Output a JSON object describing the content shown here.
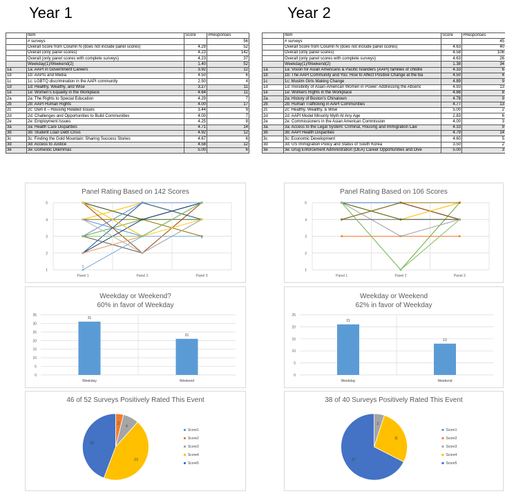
{
  "columns": [
    {
      "year_title": "Year 1",
      "header": {
        "item": "Item",
        "score": "Score",
        "responses": "#Responses"
      },
      "rows": [
        {
          "code": "",
          "item": "# surveys",
          "score": "",
          "responses": "56",
          "shade": false
        },
        {
          "code": "",
          "item": "Overall Score from Column N (does not include panel scores)",
          "score": "4.29",
          "responses": "52",
          "shade": false
        },
        {
          "code": "",
          "item": "Overall (only panel scores)",
          "score": "4.23",
          "responses": "142",
          "shade": false
        },
        {
          "code": "",
          "item": "Overall (only panel scores with complete surveys)",
          "score": "4.23",
          "responses": "37",
          "shade": false
        },
        {
          "code": "",
          "item": "Weekday(1)/Weekend(2)",
          "score": "1.40",
          "responses": "52",
          "shade": true
        },
        {
          "code": "1a",
          "item": "1a: AAPI in Government Careers",
          "score": "3.92",
          "responses": "12",
          "shade": true
        },
        {
          "code": "1b",
          "item": "1b: AAPIs and Media",
          "score": "4.50",
          "responses": "6",
          "shade": false
        },
        {
          "code": "1c",
          "item": "1c: LGBTQ discrimination in the AAPI community",
          "score": "2.50",
          "responses": "4",
          "shade": false
        },
        {
          "code": "1d",
          "item": "1d: Healthy, Wealthy, and Wise",
          "score": "3.27",
          "responses": "11",
          "shade": true
        },
        {
          "code": "1e",
          "item": "1e: Women's Equality in the Workplace",
          "score": "4.64",
          "responses": "11",
          "shade": true
        },
        {
          "code": "2a",
          "item": "2a: The Rights to Special Education",
          "score": "4.29",
          "responses": "7",
          "shade": false
        },
        {
          "code": "2b",
          "item": "2b: AAPI Human Rights",
          "score": "4.00",
          "responses": "17",
          "shade": true
        },
        {
          "code": "2c",
          "item": "2c: Own it – Housing Related Issues",
          "score": "3.44",
          "responses": "9",
          "shade": false
        },
        {
          "code": "2d",
          "item": "2d: Challenges and Opportunities to Build Communities",
          "score": "4.00",
          "responses": "7",
          "shade": false
        },
        {
          "code": "2e",
          "item": "2e: Employment Issues",
          "score": "4.25",
          "responses": "8",
          "shade": false
        },
        {
          "code": "3a",
          "item": "3a: Health Care Disparities",
          "score": "4.71",
          "responses": "14",
          "shade": true
        },
        {
          "code": "3b",
          "item": "3b: Student Loan Debt Crisis",
          "score": "4.92",
          "responses": "12",
          "shade": true
        },
        {
          "code": "3c",
          "item": "3c: Finding the Gold Mountain: Sharing Success Stories",
          "score": "4.67",
          "responses": "6",
          "shade": false
        },
        {
          "code": "3d",
          "item": "3d: Access to Justice",
          "score": "4.58",
          "responses": "12",
          "shade": true
        },
        {
          "code": "3e",
          "item": "3e: Domestic Dilemmas",
          "score": "5.00",
          "responses": "6",
          "shade": true
        }
      ]
    },
    {
      "year_title": "Year 2",
      "header": {
        "item": "Item",
        "score": "Score",
        "responses": "#Responses"
      },
      "rows": [
        {
          "code": "",
          "item": "# surveys",
          "score": "",
          "responses": "45",
          "shade": false
        },
        {
          "code": "",
          "item": "Overall Score from Column N (does not include panel scores)",
          "score": "4.63",
          "responses": "40",
          "shade": false
        },
        {
          "code": "",
          "item": "Overall (only panel scores)",
          "score": "4.58",
          "responses": "106",
          "shade": false
        },
        {
          "code": "",
          "item": "Overall (only panel scores with complete surveys)",
          "score": "4.63",
          "responses": "26",
          "shade": false
        },
        {
          "code": "",
          "item": "Weekday(1)/Weekend(2)",
          "score": "1.38",
          "responses": "34",
          "shade": true
        },
        {
          "code": "1a",
          "item": "1a: Vision for Asian Americans & Pacific Islanders (AAPI) families of childre",
          "score": "4.33",
          "responses": "6",
          "shade": true
        },
        {
          "code": "1b",
          "item": "1b: The AAPI Community and You: How to Affect Positive Change at the Ba",
          "score": "4.50",
          "responses": "4",
          "shade": true
        },
        {
          "code": "1c",
          "item": "1c: Muslim Girls Making Change",
          "score": "4.89",
          "responses": "9",
          "shade": true
        },
        {
          "code": "1d",
          "item": "1d: Invisibility of Asian-American Women in Power: Addressing the Absenc",
          "score": "4.93",
          "responses": "13",
          "shade": false
        },
        {
          "code": "1e",
          "item": "1e: Workers Rights in the Workplace",
          "score": "4.88",
          "responses": "8",
          "shade": true
        },
        {
          "code": "2a",
          "item": "2a: History of Boston's Chinatown",
          "score": "4.78",
          "responses": "9",
          "shade": true
        },
        {
          "code": "2b",
          "item": "2b: Human Trafficking in AAPI Communities",
          "score": "4.77",
          "responses": "13",
          "shade": true
        },
        {
          "code": "2c",
          "item": "2c: Healthy, Wealthy, & Wise",
          "score": "5.00",
          "responses": "2",
          "shade": false
        },
        {
          "code": "2d",
          "item": "2d: AAPI Model Minority Myth At Any Age",
          "score": "2.83",
          "responses": "6",
          "shade": false
        },
        {
          "code": "2e",
          "item": "2e: Commissioners in the Asian American Commission",
          "score": "4.00",
          "responses": "3",
          "shade": false
        },
        {
          "code": "3a",
          "item": "3a: Access to the Legal System: Criminal, Housing and Immigration Law",
          "score": "4.33",
          "responses": "9",
          "shade": true
        },
        {
          "code": "3b",
          "item": "3b: AAPI Health Disparities",
          "score": "4.79",
          "responses": "14",
          "shade": true
        },
        {
          "code": "3c",
          "item": "3c: Economic Development",
          "score": "4.60",
          "responses": "5",
          "shade": false
        },
        {
          "code": "3d",
          "item": "3d: US Immigration Policy and Status of South Korea",
          "score": "3.50",
          "responses": "2",
          "shade": false
        },
        {
          "code": "3e",
          "item": "3e: Drug Enforcement Administration (DEA) Career Opportunities and Dive",
          "score": "5.00",
          "responses": "3",
          "shade": true
        }
      ]
    }
  ],
  "chart_data": [
    {
      "type": "line",
      "title": "Panel Rating Based on 142 Scores",
      "categories": [
        "Panel 1",
        "Panel 2",
        "Panel 3"
      ],
      "ylim": [
        1,
        5
      ],
      "yticks": [
        1,
        2,
        3,
        4,
        5
      ],
      "grid": true,
      "point_labels": [
        {
          "x": 0,
          "y": 1,
          "text": "1"
        },
        {
          "x": 2,
          "y": 3,
          "text": "3"
        }
      ],
      "colors": [
        "#4472c4",
        "#ed7d31",
        "#a5a5a5",
        "#ffc000",
        "#5b9bd5",
        "#70ad47",
        "#264478",
        "#9e480e",
        "#636363",
        "#997300",
        "#255e91",
        "#43682b",
        "#698ed0",
        "#f1975a",
        "#b7b7b7",
        "#ffcd33",
        "#7cafdd",
        "#8cc168"
      ],
      "series": [
        {
          "values": [
            5,
            4,
            5
          ]
        },
        {
          "values": [
            5,
            3,
            5
          ]
        },
        {
          "values": [
            5,
            5,
            5
          ]
        },
        {
          "values": [
            4,
            5,
            4
          ]
        },
        {
          "values": [
            4,
            3,
            5
          ]
        },
        {
          "values": [
            3,
            4,
            5
          ]
        },
        {
          "values": [
            2,
            4,
            5
          ]
        },
        {
          "values": [
            5,
            2,
            5
          ]
        },
        {
          "values": [
            3,
            2,
            4
          ]
        },
        {
          "values": [
            4,
            4,
            3
          ]
        },
        {
          "values": [
            2,
            5,
            4
          ]
        },
        {
          "values": [
            5,
            4,
            4
          ]
        },
        {
          "values": [
            3,
            5,
            5
          ]
        },
        {
          "values": [
            2,
            3,
            3
          ]
        },
        {
          "values": [
            4,
            2,
            4
          ]
        },
        {
          "values": [
            5,
            3,
            4
          ]
        },
        {
          "values": [
            1,
            3,
            3
          ]
        },
        {
          "values": [
            3,
            3,
            5
          ]
        }
      ]
    },
    {
      "type": "line",
      "title": "Panel Rating Based on 106 Scores",
      "categories": [
        "Panel 1",
        "Panel 2",
        "Panel 3"
      ],
      "ylim": [
        1,
        5
      ],
      "yticks": [
        1,
        2,
        3,
        4,
        5
      ],
      "grid": true,
      "point_labels": [],
      "colors": [
        "#70ad47",
        "#264478",
        "#9e480e",
        "#4472c4",
        "#5b9bd5",
        "#ffc000",
        "#ed7d31",
        "#43682b",
        "#a5a5a5",
        "#636363",
        "#8cc168",
        "#997300"
      ],
      "series": [
        {
          "values": [
            5,
            1,
            5
          ]
        },
        {
          "values": [
            4,
            5,
            4
          ]
        },
        {
          "values": [
            5,
            5,
            4
          ]
        },
        {
          "values": [
            5,
            5,
            5
          ]
        },
        {
          "values": [
            4,
            5,
            5
          ]
        },
        {
          "values": [
            5,
            4,
            5
          ]
        },
        {
          "values": [
            3,
            3,
            3
          ]
        },
        {
          "values": [
            5,
            4,
            4
          ]
        },
        {
          "values": [
            5,
            3,
            4
          ]
        },
        {
          "values": [
            4,
            4,
            4
          ]
        },
        {
          "values": [
            5,
            1,
            4
          ]
        },
        {
          "values": [
            4,
            5,
            5
          ]
        }
      ]
    },
    {
      "type": "bar",
      "title": "Weekday or Weekend?",
      "subtitle": "60% in favor of Weekday",
      "categories": [
        "Weekday",
        "Weekend"
      ],
      "values": [
        31,
        21
      ],
      "ylim": [
        0,
        35
      ],
      "yticks": [
        0,
        5,
        10,
        15,
        20,
        25,
        30,
        35
      ],
      "color": "#5b9bd5",
      "grid": true
    },
    {
      "type": "bar",
      "title": "Weekday or Weekend",
      "subtitle": "62% in favor of Weekday",
      "categories": [
        "Weekday",
        "Weekend"
      ],
      "values": [
        21,
        13
      ],
      "ylim": [
        0,
        25
      ],
      "yticks": [
        0,
        5,
        10,
        15,
        20,
        25
      ],
      "color": "#5b9bd5",
      "grid": true
    },
    {
      "type": "pie",
      "title": "46 of 52 Surveys Positively Rated This Event",
      "labels": [
        "Score1",
        "Score2",
        "Score3",
        "Score4",
        "Score5"
      ],
      "values": [
        0,
        2,
        4,
        23,
        23
      ],
      "colors": [
        "#5b9bd5",
        "#ed7d31",
        "#a5a5a5",
        "#ffc000",
        "#4472c4"
      ],
      "legend": "right"
    },
    {
      "type": "pie",
      "title": "38 of 40 Surveys Positively Rated This Event",
      "labels": [
        "Score1",
        "Score2",
        "Score3",
        "Score4",
        "Score5"
      ],
      "values": [
        0,
        0,
        2,
        11,
        27
      ],
      "colors": [
        "#5b9bd5",
        "#ed7d31",
        "#a5a5a5",
        "#ffc000",
        "#4472c4"
      ],
      "legend": "right"
    }
  ]
}
